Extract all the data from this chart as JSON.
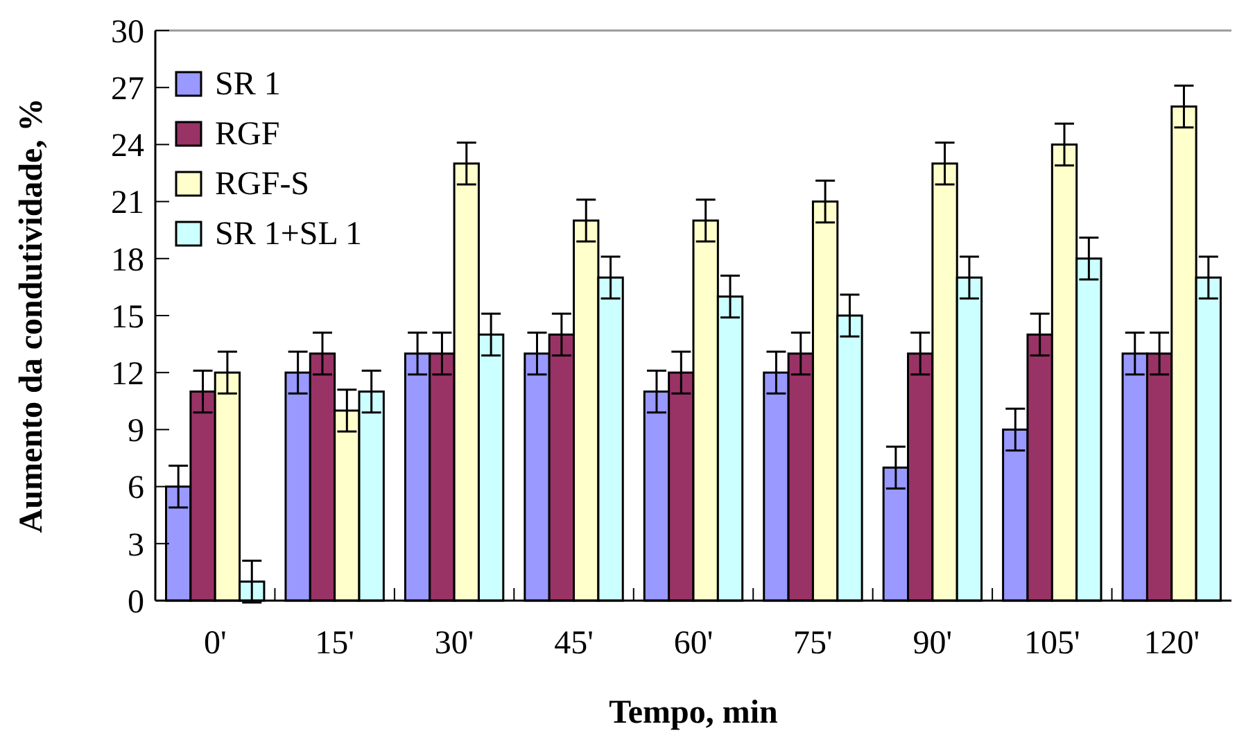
{
  "chart_data": {
    "type": "bar",
    "xlabel": "Tempo, min",
    "ylabel": "Aumento da condutividade, %",
    "categories": [
      "0'",
      "15'",
      "30'",
      "45'",
      "60'",
      "75'",
      "90'",
      "105'",
      "120'"
    ],
    "series": [
      {
        "name": "SR 1",
        "color": "#9999ff",
        "values": [
          6,
          12,
          13,
          13,
          11,
          12,
          7,
          9,
          13
        ],
        "errors": [
          1.1,
          1.1,
          1.1,
          1.1,
          1.1,
          1.1,
          1.1,
          1.1,
          1.1
        ]
      },
      {
        "name": "RGF",
        "color": "#993366",
        "values": [
          11,
          13,
          13,
          14,
          12,
          13,
          13,
          14,
          13
        ],
        "errors": [
          1.1,
          1.1,
          1.1,
          1.1,
          1.1,
          1.1,
          1.1,
          1.1,
          1.1
        ]
      },
      {
        "name": "RGF-S",
        "color": "#ffffcc",
        "values": [
          12,
          10,
          23,
          20,
          20,
          21,
          23,
          24,
          26
        ],
        "errors": [
          1.1,
          1.1,
          1.1,
          1.1,
          1.1,
          1.1,
          1.1,
          1.1,
          1.1
        ]
      },
      {
        "name": "SR 1+SL 1",
        "color": "#ccffff",
        "values": [
          1,
          11,
          14,
          17,
          16,
          15,
          17,
          18,
          17
        ],
        "errors": [
          1.1,
          1.1,
          1.1,
          1.1,
          1.1,
          1.1,
          1.1,
          1.1,
          1.1
        ]
      }
    ],
    "ylim": [
      0,
      30
    ],
    "yticks": [
      0,
      3,
      6,
      9,
      12,
      15,
      18,
      21,
      24,
      27,
      30
    ],
    "grid": false,
    "legend": "top left"
  }
}
